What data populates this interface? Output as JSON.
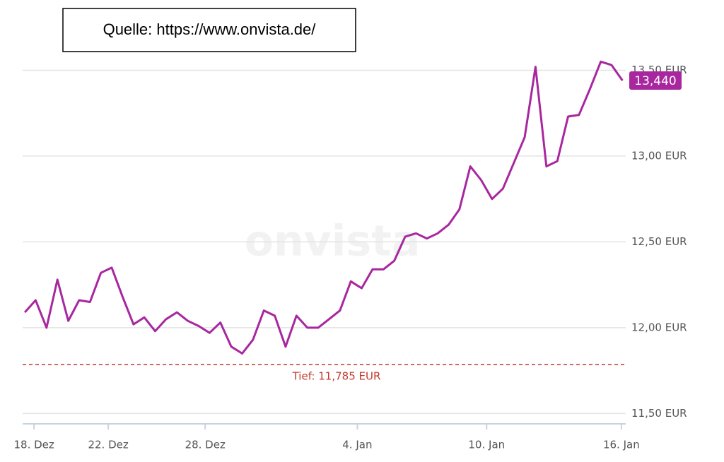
{
  "chart_data": {
    "type": "line",
    "source": "Quelle: https://www.onvista.de/",
    "watermark": "onvista",
    "x": [
      0,
      1,
      2,
      3,
      4,
      5,
      6,
      7,
      8,
      9,
      10,
      11,
      12,
      13,
      14,
      15,
      16,
      17,
      18,
      19,
      20,
      21,
      22,
      23,
      24,
      25,
      26,
      27,
      28,
      29,
      30,
      31,
      32,
      33,
      34,
      35,
      36,
      37,
      38,
      39,
      40,
      41,
      42,
      43,
      44,
      45,
      46,
      47,
      48,
      49,
      50,
      51,
      52,
      53,
      54,
      55
    ],
    "series": [
      {
        "color": "#a8279f",
        "values": [
          12.09,
          12.16,
          12.0,
          12.28,
          12.04,
          12.16,
          12.15,
          12.32,
          12.35,
          12.18,
          12.02,
          12.06,
          11.98,
          12.05,
          12.09,
          12.04,
          12.01,
          11.97,
          12.03,
          11.89,
          11.85,
          11.93,
          12.1,
          12.07,
          11.89,
          12.07,
          12.0,
          12.0,
          12.05,
          12.1,
          12.27,
          12.23,
          12.34,
          12.34,
          12.39,
          12.53,
          12.55,
          12.52,
          12.55,
          12.6,
          12.69,
          12.94,
          12.86,
          12.75,
          12.81,
          12.96,
          13.11,
          13.52,
          12.94,
          12.97,
          13.23,
          13.24,
          13.39,
          13.55,
          13.53,
          13.44
        ],
        "value_labels": [
          null,
          null,
          null,
          null,
          null,
          null,
          null,
          null,
          null,
          null,
          null,
          null,
          null,
          null,
          null,
          null,
          null,
          null,
          null,
          null,
          null,
          null,
          null,
          null,
          null,
          null,
          null,
          null,
          null,
          null,
          null,
          null,
          null,
          null,
          null,
          null,
          null,
          null,
          null,
          null,
          null,
          null,
          null,
          null,
          null,
          null,
          null,
          null,
          null,
          null,
          null,
          null,
          null,
          null,
          null,
          "13,440"
        ]
      }
    ],
    "low": {
      "value": 11.785,
      "label": "Tief: 11,785 EUR",
      "color": "#c0392b"
    },
    "xlim": [
      -0.2,
      55.3
    ],
    "xticks": [
      {
        "value": 0.85,
        "label": "18. Dez"
      },
      {
        "value": 7.68,
        "label": "22. Dez"
      },
      {
        "value": 16.6,
        "label": "28. Dez"
      },
      {
        "value": 30.6,
        "label": "4. Jan"
      },
      {
        "value": 42.5,
        "label": "10. Jan"
      },
      {
        "value": 54.9,
        "label": "16. Jan"
      }
    ],
    "ylim": [
      11.44,
      13.58
    ],
    "yticks": [
      {
        "value": 11.5,
        "label": "11,50 EUR"
      },
      {
        "value": 12.0,
        "label": "12,00 EUR"
      },
      {
        "value": 12.5,
        "label": "12,50 EUR"
      },
      {
        "value": 13.0,
        "label": "13,00 EUR"
      },
      {
        "value": 13.5,
        "label": "13,50 EUR"
      }
    ],
    "grid": true
  }
}
